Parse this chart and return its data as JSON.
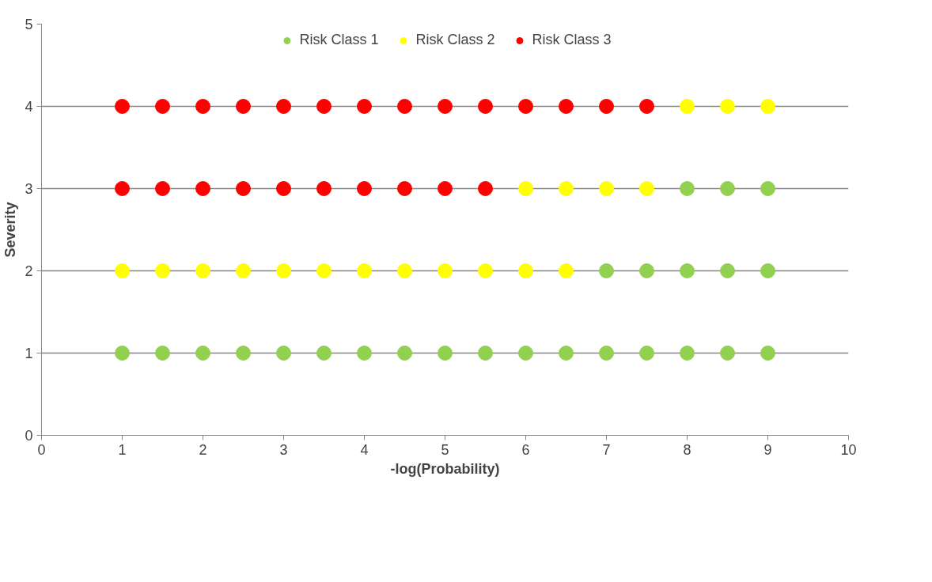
{
  "chart_data": {
    "type": "scatter",
    "xlabel": "-log(Probability)",
    "ylabel": "Severity",
    "xlim": [
      0,
      10
    ],
    "ylim": [
      0,
      5
    ],
    "xticks": [
      0,
      1,
      2,
      3,
      4,
      5,
      6,
      7,
      8,
      9,
      10
    ],
    "yticks": [
      0,
      1,
      2,
      3,
      4,
      5
    ],
    "grid": "y",
    "legend": "top",
    "marker": "circle",
    "series": [
      {
        "name": "Risk Class 1",
        "color": "#92d050",
        "x": [
          1,
          1.5,
          2,
          2.5,
          3,
          3.5,
          4,
          4.5,
          5,
          5.5,
          6,
          6.5,
          7,
          7.5,
          8,
          8.5,
          9,
          7,
          7.5,
          8,
          8.5,
          9,
          8,
          8.5,
          9
        ],
        "values": [
          1,
          1,
          1,
          1,
          1,
          1,
          1,
          1,
          1,
          1,
          1,
          1,
          1,
          1,
          1,
          1,
          1,
          2,
          2,
          2,
          2,
          2,
          3,
          3,
          3
        ]
      },
      {
        "name": "Risk Class 2",
        "color": "#ffff00",
        "x": [
          1,
          1.5,
          2,
          2.5,
          3,
          3.5,
          4,
          4.5,
          5,
          5.5,
          6,
          6.5,
          6,
          6.5,
          7,
          7.5,
          8,
          8.5,
          9
        ],
        "values": [
          2,
          2,
          2,
          2,
          2,
          2,
          2,
          2,
          2,
          2,
          2,
          2,
          3,
          3,
          3,
          3,
          4,
          4,
          4
        ]
      },
      {
        "name": "Risk Class 3",
        "color": "#ff0000",
        "x": [
          1,
          1.5,
          2,
          2.5,
          3,
          3.5,
          4,
          4.5,
          5,
          5.5,
          1,
          1.5,
          2,
          2.5,
          3,
          3.5,
          4,
          4.5,
          5,
          5.5,
          6,
          6.5,
          7,
          7.5
        ],
        "values": [
          3,
          3,
          3,
          3,
          3,
          3,
          3,
          3,
          3,
          3,
          4,
          4,
          4,
          4,
          4,
          4,
          4,
          4,
          4,
          4,
          4,
          4,
          4,
          4
        ]
      }
    ]
  }
}
